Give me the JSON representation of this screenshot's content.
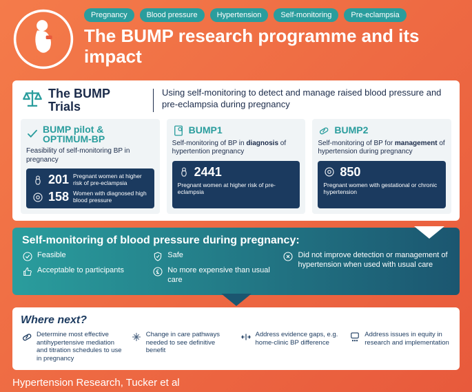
{
  "colors": {
    "bg_grad_from": "#f47b4a",
    "bg_grad_to": "#e85a3c",
    "teal": "#2a9d9d",
    "navy": "#1b3a5f",
    "dark_text": "#1b2b4a",
    "teal_grad_to": "#1b5670",
    "card_bg": "#f0f4f6",
    "white": "#ffffff"
  },
  "tags": [
    "Pregnancy",
    "Blood pressure",
    "Hypertension",
    "Self-monitoring",
    "Pre-eclampsia"
  ],
  "title": "The BUMP research programme and its impact",
  "trials": {
    "heading": "The BUMP Trials",
    "description": "Using self-monitoring to detect and manage raised blood pressure and pre-eclampsia during pregnancy",
    "cards": [
      {
        "name": "BUMP pilot & OPTIMUM-BP",
        "sub": "Feasibility of self-monitoring BP in pregnancy",
        "stats": [
          {
            "n": "201",
            "label": "Pregnant women at higher risk of pre-eclampsia"
          },
          {
            "n": "158",
            "label": "Women with diagnosed high blood pressure"
          }
        ]
      },
      {
        "name": "BUMP1",
        "sub_html": "Self-monitoring of BP in <b>diagnosis</b> of hypertention pregnancy",
        "stats": [
          {
            "n": "2441",
            "label": "Pregnant women at higher risk of pre-eclampsia"
          }
        ]
      },
      {
        "name": "BUMP2",
        "sub_html": "Self-monitoring of BP for <b>management</b> of hypertension during pregnancy",
        "stats": [
          {
            "n": "850",
            "label": "Pregnant women with gestational or chronic hypertension"
          }
        ]
      }
    ]
  },
  "findings": {
    "title": "Self-monitoring of blood pressure during pregnancy:",
    "col1": [
      "Feasible",
      "Acceptable to participants"
    ],
    "col2": [
      "Safe",
      "No more expensive than usual care"
    ],
    "col3": [
      "Did not improve detection or management of hypertension when used with usual care"
    ]
  },
  "where": {
    "title": "Where next?",
    "items": [
      "Determine most effective antihypertensive mediation and titration schedules to use in pregnancy",
      "Change in care pathways needed to see definitive benefit",
      "Address evidence gaps, e.g. home-clinic BP difference",
      "Address issues in equity in research and implementation"
    ]
  },
  "footer": "Hypertension Research, Tucker et al"
}
